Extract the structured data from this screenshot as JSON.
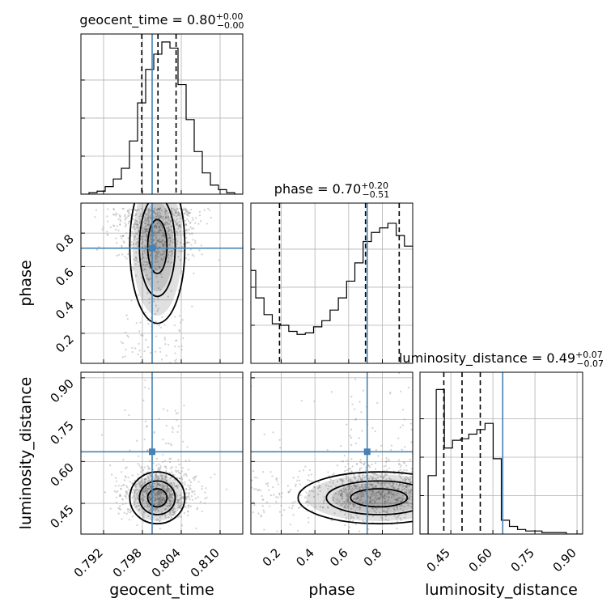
{
  "chart_data": {
    "type": "corner",
    "parameters": [
      "geocent_time",
      "phase",
      "luminosity_distance"
    ],
    "titles": [
      {
        "param": "geocent_time",
        "text": "geocent_time = 0.80",
        "plus": "+0.00",
        "minus": "−0.00"
      },
      {
        "param": "phase",
        "text": "phase = 0.70",
        "plus": "+0.20",
        "minus": "−0.51"
      },
      {
        "param": "luminosity_distance",
        "text": "luminosity_distance = 0.49",
        "plus": "+0.07",
        "minus": "−0.07"
      }
    ],
    "ranges": {
      "geocent_time": [
        0.7885,
        0.8135
      ],
      "phase": [
        0.02,
        0.98
      ],
      "luminosity_distance": [
        0.34,
        0.92
      ]
    },
    "ticks": {
      "geocent_time": [
        "0.792",
        "0.798",
        "0.804",
        "0.810"
      ],
      "phase": [
        "0.2",
        "0.4",
        "0.6",
        "0.8"
      ],
      "luminosity_distance": [
        "0.45",
        "0.60",
        "0.75",
        "0.90"
      ]
    },
    "truth": {
      "geocent_time": 0.7995,
      "phase": 0.71,
      "luminosity_distance": 0.635
    },
    "quantiles": {
      "geocent_time": [
        0.7979,
        0.8004,
        0.8032
      ],
      "phase": [
        0.19,
        0.7,
        0.9
      ],
      "luminosity_distance": [
        0.425,
        0.49,
        0.555
      ]
    },
    "histograms": {
      "geocent_time": {
        "edges_range": [
          0.7885,
          0.8135
        ],
        "counts": [
          0.0,
          0.01,
          0.02,
          0.05,
          0.1,
          0.17,
          0.35,
          0.6,
          0.82,
          0.92,
          1.0,
          0.96,
          0.72,
          0.49,
          0.28,
          0.14,
          0.06,
          0.03,
          0.01,
          0.0
        ]
      },
      "phase": {
        "edges_range": [
          0.0,
          0.98
        ],
        "counts": [
          0.61,
          0.43,
          0.32,
          0.26,
          0.25,
          0.21,
          0.19,
          0.2,
          0.24,
          0.28,
          0.35,
          0.43,
          0.54,
          0.66,
          0.8,
          0.86,
          0.89,
          0.92,
          0.84,
          0.77
        ]
      },
      "luminosity_distance": {
        "edges_range": [
          0.34,
          0.92
        ],
        "counts": [
          0.0,
          0.38,
          0.94,
          0.56,
          0.61,
          0.62,
          0.65,
          0.68,
          0.72,
          0.49,
          0.09,
          0.05,
          0.03,
          0.02,
          0.02,
          0.01,
          0.01,
          0.01,
          0.0,
          0.0
        ]
      }
    },
    "grid": true
  }
}
